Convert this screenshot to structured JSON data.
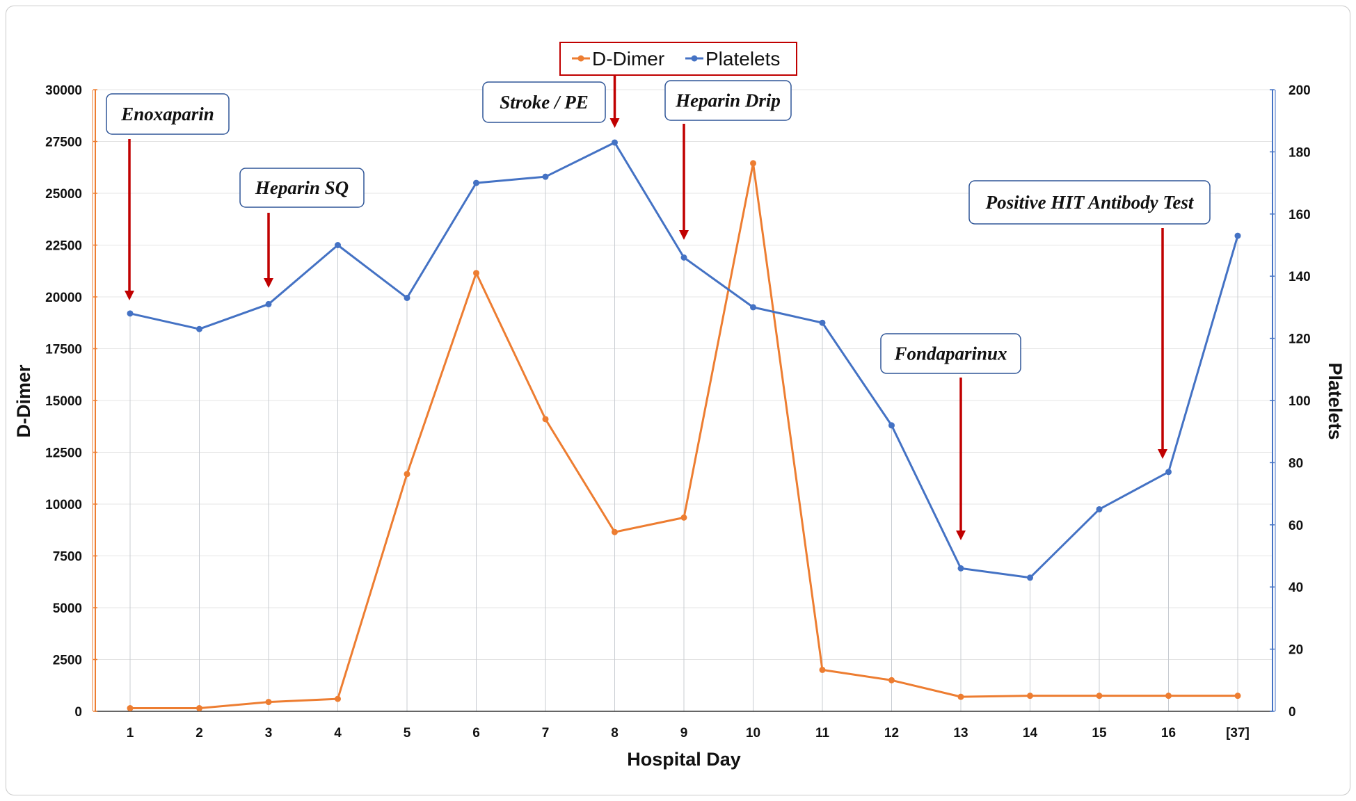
{
  "chart_data": {
    "type": "line",
    "title": "",
    "xlabel": "Hospital Day",
    "ylabel": "D-Dimer",
    "y2label": "Platelets",
    "categories": [
      "1",
      "2",
      "3",
      "4",
      "5",
      "6",
      "7",
      "8",
      "9",
      "10",
      "11",
      "12",
      "13",
      "14",
      "15",
      "16",
      "[37]"
    ],
    "ylim": [
      0,
      30000
    ],
    "y2lim": [
      0,
      200
    ],
    "yticks": [
      "0",
      "2500",
      "5000",
      "7500",
      "10000",
      "12500",
      "15000",
      "17500",
      "20000",
      "22500",
      "25000",
      "27500",
      "30000"
    ],
    "y2ticks": [
      "0",
      "20",
      "40",
      "60",
      "80",
      "100",
      "120",
      "140",
      "160",
      "180",
      "200"
    ],
    "series": [
      {
        "name": "D-Dimer",
        "axis": "left",
        "color": "#ed7d31",
        "values": [
          150,
          150,
          450,
          600,
          11450,
          21150,
          14100,
          8650,
          9350,
          26450,
          2000,
          1500,
          700,
          750,
          750,
          750,
          750
        ]
      },
      {
        "name": "Platelets",
        "axis": "right",
        "color": "#4472c4",
        "values": [
          128,
          123,
          131,
          150,
          133,
          170,
          172,
          183,
          146,
          130,
          125,
          92,
          46,
          43,
          65,
          77,
          153
        ]
      }
    ],
    "legend": {
      "placement": "top-center",
      "entries": [
        "D-Dimer",
        "Platelets"
      ]
    },
    "annotations": [
      {
        "text": "Enoxaparin",
        "day": "1"
      },
      {
        "text": "Heparin SQ",
        "day": "3"
      },
      {
        "text": "Stroke / PE",
        "day": "8"
      },
      {
        "text": "Heparin Drip",
        "day": "9"
      },
      {
        "text": "Fondaparinux",
        "day": "13"
      },
      {
        "text": "Positive HIT Antibody Test",
        "day": "16"
      }
    ]
  },
  "colors": {
    "left_axis": "#ed7d31",
    "right_axis": "#4472c4",
    "arrow": "#c00000",
    "annotation_border": "#2f5597",
    "legend_border": "#c00000"
  }
}
